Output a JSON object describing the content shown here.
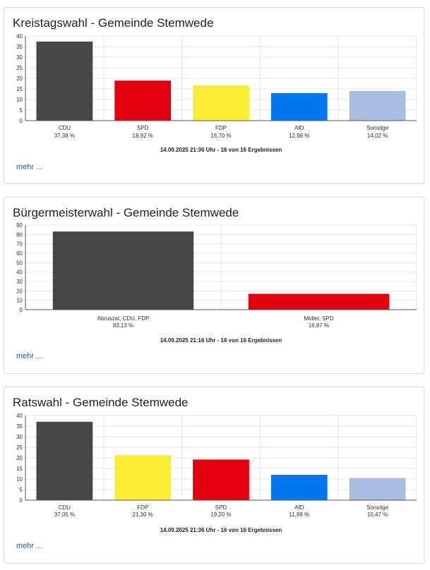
{
  "more_label": "mehr ...",
  "colors": {
    "grid": "#e6e6e6",
    "axis": "#555555",
    "tick_text": "#333333"
  },
  "chart_data": [
    {
      "type": "bar",
      "title": "Kreistagswahl - Gemeinde Stemwede",
      "ylim": [
        0,
        40
      ],
      "yticks": [
        0,
        5,
        10,
        15,
        20,
        25,
        30,
        35,
        40
      ],
      "grid": true,
      "categories": [
        "CDU",
        "SPD",
        "FDP",
        "AfD",
        "Sonstige"
      ],
      "values": [
        37.38,
        18.92,
        16.7,
        12.98,
        14.02
      ],
      "value_labels": [
        "37,38 %",
        "18,92 %",
        "16,70 %",
        "12,98 %",
        "14,02 %"
      ],
      "colors": [
        "#474747",
        "#e3000f",
        "#f9ee32",
        "#0077ee",
        "#aabde3"
      ],
      "footnote": "14.09.2025 21:36 Uhr - 16 von 16 Ergebnissen"
    },
    {
      "type": "bar",
      "title": "Bürgermeisterwahl - Gemeinde Stemwede",
      "ylim": [
        0,
        90
      ],
      "yticks": [
        0,
        10,
        20,
        30,
        40,
        50,
        60,
        70,
        80,
        90
      ],
      "grid": true,
      "categories": [
        "Abruszat, CDU, FDP",
        "Möller, SPD"
      ],
      "values": [
        83.13,
        16.87
      ],
      "value_labels": [
        "83,13 %",
        "16,87 %"
      ],
      "colors": [
        "#474747",
        "#e3000f"
      ],
      "footnote": "14.09.2025 21:16 Uhr - 16 von 16 Ergebnissen"
    },
    {
      "type": "bar",
      "title": "Ratswahl - Gemeinde Stemwede",
      "ylim": [
        0,
        40
      ],
      "yticks": [
        0,
        5,
        10,
        15,
        20,
        25,
        30,
        35,
        40
      ],
      "grid": true,
      "categories": [
        "CDU",
        "FDP",
        "SPD",
        "AfD",
        "Sonstige"
      ],
      "values": [
        37.05,
        21.3,
        19.2,
        11.98,
        10.47
      ],
      "value_labels": [
        "37,05 %",
        "21,30 %",
        "19,20 %",
        "11,98 %",
        "10,47 %"
      ],
      "colors": [
        "#474747",
        "#f9ee32",
        "#e3000f",
        "#0077ee",
        "#aabde3"
      ],
      "footnote": "14.09.2025 21:36 Uhr - 16 von 16 Ergebnissen"
    }
  ]
}
